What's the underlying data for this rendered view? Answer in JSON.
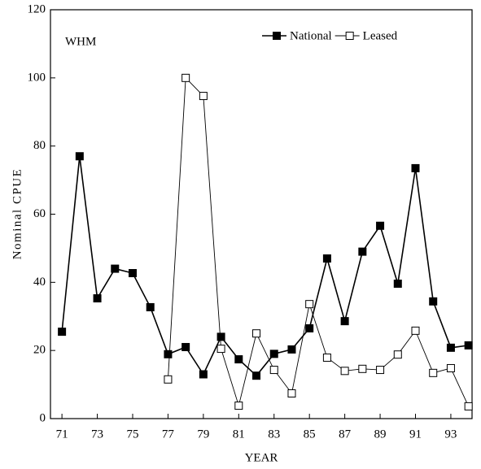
{
  "chart_data": {
    "type": "line",
    "annotation": "WHM",
    "xlabel": "YEAR",
    "ylabel": "Nominal CPUE",
    "x": [
      71,
      72,
      73,
      74,
      75,
      76,
      77,
      78,
      79,
      80,
      81,
      82,
      83,
      84,
      85,
      86,
      87,
      88,
      89,
      90,
      91,
      92,
      93,
      94
    ],
    "series": [
      {
        "name": "National",
        "color": "#000000",
        "marker": "filled-square",
        "values": [
          25.5,
          77,
          35.3,
          44,
          42.7,
          32.7,
          18.9,
          21,
          13,
          24,
          17.4,
          12.6,
          19,
          20.3,
          26.5,
          47,
          28.6,
          49,
          56.6,
          39.6,
          73.5,
          34.4,
          20.8,
          21.5
        ]
      },
      {
        "name": "Leased",
        "color": "#000000",
        "marker": "open-square",
        "values": [
          null,
          null,
          null,
          null,
          null,
          null,
          11.5,
          100,
          94.7,
          20.5,
          3.8,
          25,
          14.3,
          7.4,
          33.6,
          17.9,
          14,
          14.6,
          14.3,
          18.8,
          25.8,
          13.4,
          14.8,
          3.6
        ]
      }
    ],
    "xlim": [
      70.35,
      94.2
    ],
    "ylim": [
      0,
      120
    ],
    "xticks": [
      71,
      73,
      75,
      77,
      79,
      81,
      83,
      85,
      87,
      89,
      91,
      93
    ],
    "yticks": [
      0,
      20,
      40,
      60,
      80,
      100,
      120
    ],
    "legend": "top-right"
  }
}
